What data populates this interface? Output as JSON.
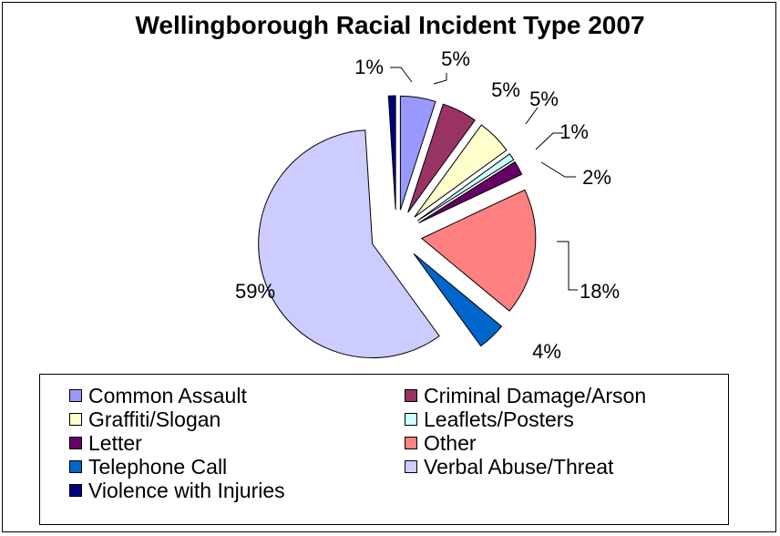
{
  "chart_data": {
    "type": "pie",
    "title": "Wellingborough Racial Incident Type 2007",
    "slices": [
      {
        "label": "Common Assault",
        "value": 5,
        "display": "5%",
        "color": "#9999FF"
      },
      {
        "label": "Criminal Damage/Arson",
        "value": 5,
        "display": "5%",
        "color": "#993366"
      },
      {
        "label": "Graffiti/Slogan",
        "value": 5,
        "display": "5%",
        "color": "#FFFFCC"
      },
      {
        "label": "Leaflets/Posters",
        "value": 1,
        "display": "1%",
        "color": "#CCFFFF"
      },
      {
        "label": "Letter",
        "value": 2,
        "display": "2%",
        "color": "#660066"
      },
      {
        "label": "Other",
        "value": 18,
        "display": "18%",
        "color": "#FF8080"
      },
      {
        "label": "Telephone Call",
        "value": 4,
        "display": "4%",
        "color": "#0066CC"
      },
      {
        "label": "Verbal Abuse/Threat",
        "value": 59,
        "display": "59%",
        "color": "#CCCCFF"
      },
      {
        "label": "Violence with Injuries",
        "value": 1,
        "display": "1%",
        "color": "#000080"
      }
    ],
    "legend": {
      "position": "bottom",
      "columns": 2
    }
  }
}
